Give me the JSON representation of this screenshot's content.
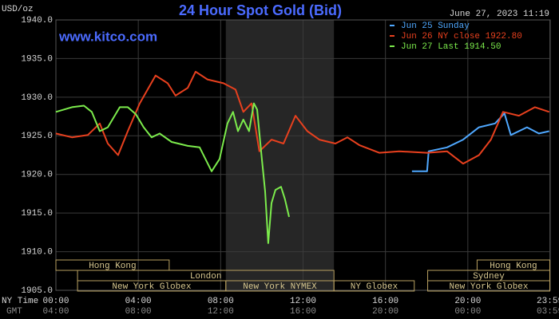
{
  "chart_data": {
    "type": "line",
    "title": "24 Hour Spot Gold (Bid)",
    "timestamp": "June 27, 2023 11:19",
    "watermark": "www.kitco.com",
    "y_label": "USD/oz",
    "x_row_labels": [
      "NY Time",
      "GMT"
    ],
    "xlim": [
      0,
      24
    ],
    "ylim": [
      1905,
      1940
    ],
    "xticks": [
      {
        "value": 0,
        "label": "00:00"
      },
      {
        "value": 4,
        "label": "04:00"
      },
      {
        "value": 8,
        "label": "08:00"
      },
      {
        "value": 12,
        "label": "12:00"
      },
      {
        "value": 16,
        "label": "16:00"
      },
      {
        "value": 20,
        "label": "20:00"
      },
      {
        "value": 23.983,
        "label": "23:59"
      }
    ],
    "gmt_tick_labels": [
      "04:00",
      "08:00",
      "12:00",
      "16:00",
      "20:00",
      "00:00",
      "03:59"
    ],
    "yticks": [
      {
        "value": 1905,
        "label": "1905.0"
      },
      {
        "value": 1910,
        "label": "1910.0"
      },
      {
        "value": 1915,
        "label": "1915.0"
      },
      {
        "value": 1920,
        "label": "1920.0"
      },
      {
        "value": 1925,
        "label": "1925.0"
      },
      {
        "value": 1930,
        "label": "1930.0"
      },
      {
        "value": 1935,
        "label": "1935.0"
      },
      {
        "value": 1940,
        "label": "1940.0"
      }
    ],
    "grid": true,
    "legend": "top-right",
    "series": [
      {
        "name": "Jun 25 Sunday",
        "color": "#4fa8ff",
        "x": [
          17.29,
          18.02,
          18.1,
          18.99,
          19.77,
          20.54,
          21.32,
          21.78,
          22.09,
          22.87,
          23.45,
          23.95
        ],
        "values": [
          1920.4,
          1920.4,
          1923.0,
          1923.5,
          1924.5,
          1926.1,
          1926.6,
          1927.9,
          1925.1,
          1926.1,
          1925.3,
          1925.6
        ]
      },
      {
        "name": "Jun 26 NY close 1922.80",
        "color": "#e8401e",
        "x": [
          0,
          0.78,
          1.55,
          2.13,
          2.52,
          3.02,
          3.49,
          4.07,
          4.84,
          5.43,
          5.81,
          6.4,
          6.78,
          7.36,
          8.14,
          8.72,
          9.1,
          9.5,
          9.88,
          10.47,
          11.05,
          11.63,
          12.21,
          12.79,
          13.57,
          14.15,
          14.73,
          15.7,
          16.67,
          18.02,
          18.99,
          19.77,
          20.54,
          21.12,
          21.71,
          22.48,
          23.26,
          23.95
        ],
        "values": [
          1925.3,
          1924.8,
          1925.1,
          1926.6,
          1924.0,
          1922.5,
          1925.6,
          1929.2,
          1932.8,
          1931.8,
          1930.2,
          1931.2,
          1933.3,
          1932.3,
          1931.8,
          1931.0,
          1928.1,
          1929.2,
          1923.0,
          1924.5,
          1924.0,
          1927.6,
          1925.6,
          1924.5,
          1924.0,
          1924.8,
          1923.8,
          1922.8,
          1923.0,
          1922.8,
          1923.0,
          1921.4,
          1922.5,
          1924.5,
          1928.1,
          1927.6,
          1928.7,
          1928.1
        ]
      },
      {
        "name": "Jun 27 Last 1914.50",
        "color": "#7cec4c",
        "x": [
          0,
          0.78,
          1.36,
          1.74,
          2.13,
          2.52,
          3.1,
          3.49,
          3.88,
          4.26,
          4.65,
          5.04,
          5.62,
          6.4,
          6.98,
          7.56,
          7.95,
          8.33,
          8.6,
          8.84,
          9.1,
          9.38,
          9.61,
          9.77,
          10.0,
          10.16,
          10.31,
          10.47,
          10.66,
          10.93,
          11.12,
          11.32
        ],
        "values": [
          1928.1,
          1928.7,
          1928.9,
          1928.1,
          1925.6,
          1926.1,
          1928.7,
          1928.7,
          1927.8,
          1926.1,
          1924.8,
          1925.3,
          1924.2,
          1923.7,
          1923.5,
          1920.4,
          1922.0,
          1926.6,
          1928.1,
          1925.6,
          1927.1,
          1925.6,
          1929.2,
          1928.4,
          1922.0,
          1917.8,
          1911.1,
          1916.3,
          1918.0,
          1918.4,
          1916.8,
          1914.5
        ]
      }
    ],
    "sessions": [
      {
        "label": "Hong Kong",
        "row": 0,
        "start": 0,
        "end": 5.5
      },
      {
        "label": "London",
        "row": 1,
        "start": 1.05,
        "end": 13.5
      },
      {
        "label": "New York Globex",
        "row": 2,
        "start": 1.05,
        "end": 8.25
      },
      {
        "label": "New York NYMEX",
        "row": 2,
        "start": 8.25,
        "end": 13.5
      },
      {
        "label": "NY Globex",
        "row": 2,
        "start": 13.5,
        "end": 17.4
      },
      {
        "label": "Sydney",
        "row": 1,
        "start": 18.05,
        "end": 23.98
      },
      {
        "label": "Hong Kong",
        "row": 0,
        "start": 20.45,
        "end": 23.98
      },
      {
        "label": "New York Globex",
        "row": 2,
        "start": 18.05,
        "end": 23.98
      }
    ]
  }
}
